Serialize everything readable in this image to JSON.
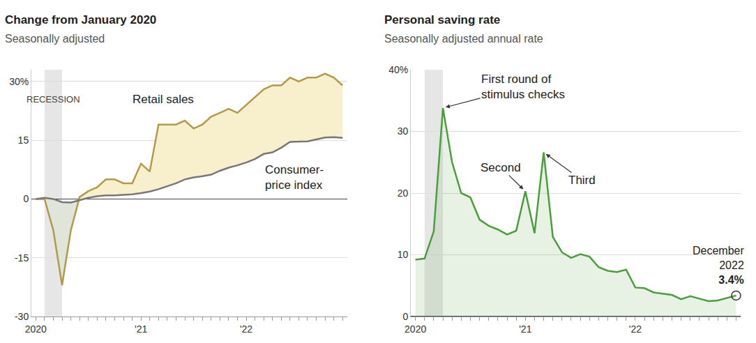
{
  "chart_data": [
    {
      "type": "line",
      "title": "Change from January 2020",
      "subtitle": "Seasonally adjusted",
      "categories": [
        "2020",
        null,
        null,
        null,
        null,
        null,
        null,
        null,
        null,
        null,
        null,
        null,
        "'21",
        null,
        null,
        null,
        null,
        null,
        null,
        null,
        null,
        null,
        null,
        null,
        "'22",
        null,
        null,
        null,
        null,
        null,
        null,
        null,
        null,
        null,
        null,
        null
      ],
      "series": [
        {
          "name": "Retail sales",
          "color": "#b39a48",
          "values": [
            0,
            0,
            -8,
            -22,
            -8,
            0.5,
            2,
            3,
            5,
            5,
            4,
            4,
            9,
            7,
            19,
            19,
            19,
            20,
            18,
            19,
            21,
            22,
            23,
            22,
            24,
            26,
            28,
            29,
            29,
            31,
            30,
            31,
            31,
            32,
            31,
            29
          ]
        },
        {
          "name": "Consumer-\nprice index",
          "color": "#777777",
          "values": [
            0,
            0.3,
            0,
            -0.8,
            -0.9,
            -0.3,
            0.3,
            0.7,
            0.9,
            0.9,
            1.0,
            1.2,
            1.5,
            1.9,
            2.5,
            3.3,
            4.0,
            5.0,
            5.5,
            5.8,
            6.2,
            7.2,
            8.0,
            8.6,
            9.3,
            10.2,
            11.5,
            11.9,
            13.1,
            14.6,
            14.6,
            14.7,
            15.2,
            15.7,
            15.8,
            15.6
          ]
        }
      ],
      "shaded": {
        "text": "RECESSION",
        "from": 1,
        "to": 3
      },
      "ylim": [
        -30,
        33
      ],
      "yticks": [
        -30,
        -15,
        0,
        15,
        {
          "value": 30,
          "label": "30%"
        }
      ],
      "grid": true
    },
    {
      "type": "area",
      "title": "Personal saving rate",
      "subtitle": "Seasonally adjusted annual rate",
      "categories": [
        "2020",
        null,
        null,
        null,
        null,
        null,
        null,
        null,
        null,
        null,
        null,
        null,
        "'21",
        null,
        null,
        null,
        null,
        null,
        null,
        null,
        null,
        null,
        null,
        null,
        "'22",
        null,
        null,
        null,
        null,
        null,
        null,
        null,
        null,
        null,
        null,
        null
      ],
      "color": "#4a9e3c",
      "values": [
        9.2,
        9.4,
        13.8,
        33.8,
        25,
        20,
        19.3,
        15.7,
        14.7,
        14.1,
        13.3,
        13.9,
        20.3,
        13.5,
        26.6,
        12.9,
        10.4,
        9.5,
        10.1,
        9.7,
        8,
        7.4,
        7.2,
        7.6,
        4.7,
        4.6,
        3.9,
        3.7,
        3.5,
        2.8,
        3.3,
        2.9,
        2.5,
        2.6,
        3.0,
        3.4
      ],
      "annotations": [
        {
          "text": "First round of\nstimulus checks",
          "x": 3
        },
        {
          "text": "Second",
          "x": 12
        },
        {
          "text": "Third",
          "x": 14
        },
        {
          "text": "December\n2022",
          "x": 35,
          "value_label": "3.4%"
        }
      ],
      "shaded": {
        "from": 1,
        "to": 3
      },
      "ylim": [
        0,
        40
      ],
      "yticks": [
        0,
        10,
        20,
        30,
        {
          "value": 40,
          "label": "40%"
        }
      ],
      "grid": true
    }
  ]
}
